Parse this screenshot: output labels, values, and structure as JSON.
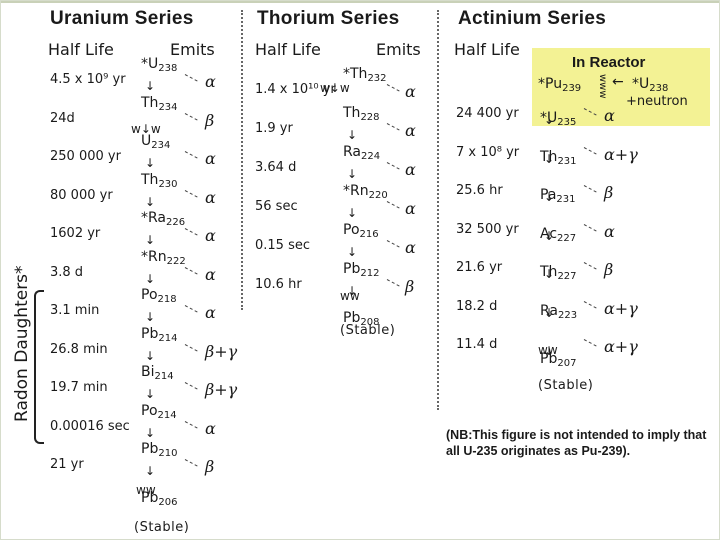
{
  "uranium": {
    "title": "Uranium Series",
    "half_life_header": "Half Life",
    "emits_header": "Emits",
    "half_lives": [
      "4.5 x 10⁹ yr",
      "24d",
      "250 000 yr",
      "80 000 yr",
      "1602 yr",
      "3.8 d",
      "3.1 min",
      "26.8 min",
      "19.7 min",
      "0.00016 sec",
      "21 yr"
    ],
    "nuclides": [
      {
        "prefix": "*",
        "sym": "U",
        "mass": "238"
      },
      {
        "prefix": "",
        "sym": "Th",
        "mass": "234"
      },
      {
        "prefix": "",
        "sym": "U",
        "mass": "234"
      },
      {
        "prefix": "",
        "sym": "Th",
        "mass": "230"
      },
      {
        "prefix": "*",
        "sym": "Ra",
        "mass": "226"
      },
      {
        "prefix": "*",
        "sym": "Rn",
        "mass": "222"
      },
      {
        "prefix": "",
        "sym": "Po",
        "mass": "218"
      },
      {
        "prefix": "",
        "sym": "Pb",
        "mass": "214"
      },
      {
        "prefix": "",
        "sym": "Bi",
        "mass": "214"
      },
      {
        "prefix": "",
        "sym": "Po",
        "mass": "214"
      },
      {
        "prefix": "",
        "sym": "Pb",
        "mass": "210"
      },
      {
        "prefix": "",
        "sym": "Pb",
        "mass": "206"
      }
    ],
    "emits": [
      "α",
      "β",
      "α",
      "α",
      "α",
      "α",
      "α",
      "β+γ",
      "β+γ",
      "α",
      "β"
    ],
    "stable": "(Stable)",
    "wavy": "ww",
    "twiddle": "w↓w"
  },
  "thorium": {
    "title": "Thorium Series",
    "half_life_header": "Half Life",
    "emits_header": "Emits",
    "half_lives": [
      "1.4 x 10¹⁰ yr",
      "1.9 yr",
      "3.64 d",
      "56 sec",
      "0.15 sec",
      "10.6 hr"
    ],
    "nuclides": [
      {
        "prefix": "*",
        "sym": "Th",
        "mass": "232"
      },
      {
        "prefix": "",
        "sym": "Th",
        "mass": "228"
      },
      {
        "prefix": "",
        "sym": "Ra",
        "mass": "224"
      },
      {
        "prefix": "*",
        "sym": "Rn",
        "mass": "220"
      },
      {
        "prefix": "",
        "sym": "Po",
        "mass": "216"
      },
      {
        "prefix": "",
        "sym": "Pb",
        "mass": "212"
      },
      {
        "prefix": "",
        "sym": "Pb",
        "mass": "208"
      }
    ],
    "emits": [
      "α",
      "α",
      "α",
      "α",
      "α",
      "β"
    ],
    "stable": "(Stable)",
    "wavy": "ww",
    "twiddle": "w↓w"
  },
  "actinium": {
    "title": "Actinium Series",
    "half_life_header": "Half Life",
    "half_lives": [
      "24 400 yr",
      "7 x 10⁸ yr",
      "25.6 hr",
      "32 500 yr",
      "21.6 yr",
      "18.2 d",
      "11.4 d"
    ],
    "nuclides": [
      {
        "prefix": "*",
        "sym": "U",
        "mass": "235"
      },
      {
        "prefix": "",
        "sym": "Th",
        "mass": "231"
      },
      {
        "prefix": "",
        "sym": "Pa",
        "mass": "231"
      },
      {
        "prefix": "",
        "sym": "Ac",
        "mass": "227"
      },
      {
        "prefix": "",
        "sym": "Th",
        "mass": "227"
      },
      {
        "prefix": "",
        "sym": "Ra",
        "mass": "223"
      },
      {
        "prefix": "",
        "sym": "Pb",
        "mass": "207"
      }
    ],
    "emits": [
      "α",
      "α+γ",
      "β",
      "α",
      "β",
      "α+γ",
      "α+γ"
    ],
    "stable": "(Stable)",
    "wavy": "ww"
  },
  "reactor": {
    "title": "In Reactor",
    "pu": {
      "prefix": "*",
      "sym": "Pu",
      "mass": "239"
    },
    "u238": {
      "prefix": "*",
      "sym": "U",
      "mass": "238"
    },
    "neutron": "+neutron",
    "wiggle": "www"
  },
  "radon_daughters": "Radon Daughters*",
  "note": "(NB:This figure is not intended to imply that all U-235 originates as Pu-239).",
  "colors": {
    "reactor_box": "#f3f294",
    "frame": "#d6dccb"
  }
}
